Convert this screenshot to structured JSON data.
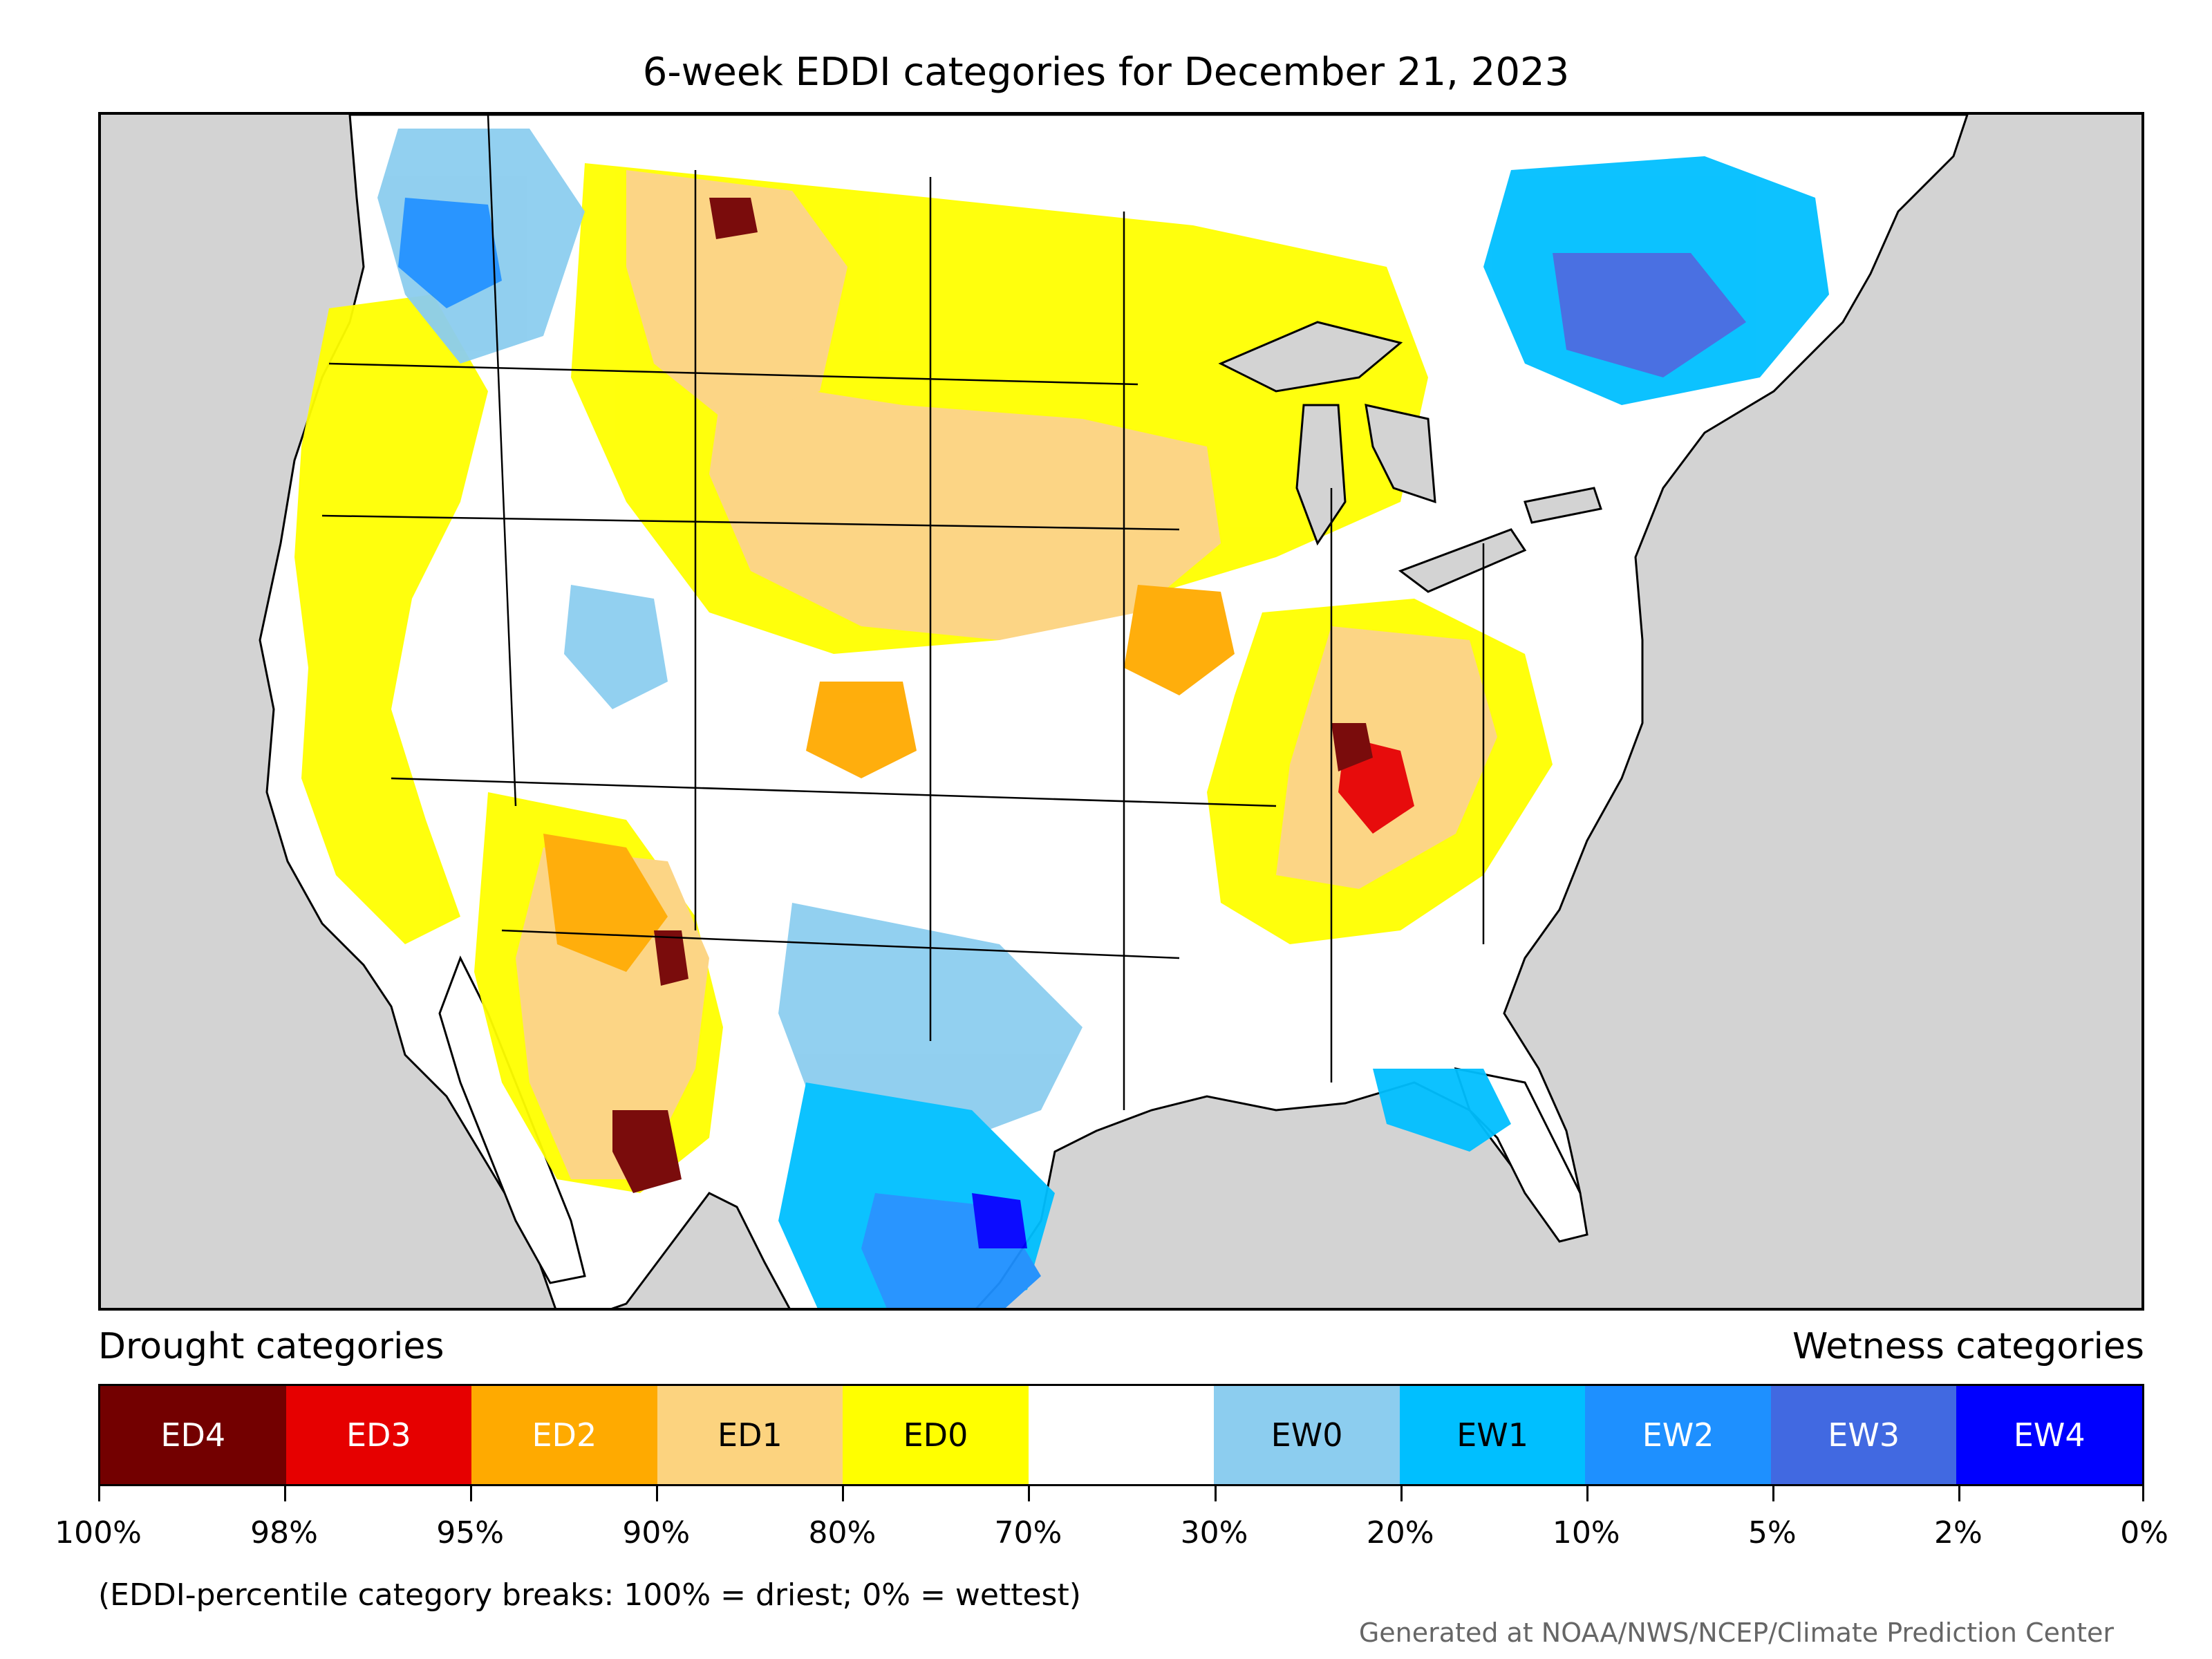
{
  "title": "6-week EDDI categories for December 21, 2023",
  "legend": {
    "drought_heading": "Drought categories",
    "wetness_heading": "Wetness categories",
    "categories": [
      {
        "label": "ED4",
        "color": "#730000",
        "text_color": "#ffffff"
      },
      {
        "label": "ED3",
        "color": "#e60000",
        "text_color": "#ffffff"
      },
      {
        "label": "ED2",
        "color": "#ffaa00",
        "text_color": "#ffffff"
      },
      {
        "label": "ED1",
        "color": "#fcd37f",
        "text_color": "#000000"
      },
      {
        "label": "ED0",
        "color": "#ffff00",
        "text_color": "#000000"
      },
      {
        "label": "",
        "color": "#ffffff",
        "text_color": "#000000"
      },
      {
        "label": "EW0",
        "color": "#8ccdef",
        "text_color": "#000000"
      },
      {
        "label": "EW1",
        "color": "#00bfff",
        "text_color": "#000000"
      },
      {
        "label": "EW2",
        "color": "#1e90ff",
        "text_color": "#ffffff"
      },
      {
        "label": "EW3",
        "color": "#4169e1",
        "text_color": "#ffffff"
      },
      {
        "label": "EW4",
        "color": "#0000ff",
        "text_color": "#ffffff"
      }
    ],
    "breaks": [
      "100%",
      "98%",
      "95%",
      "90%",
      "80%",
      "70%",
      "30%",
      "20%",
      "10%",
      "5%",
      "2%",
      "0%"
    ]
  },
  "footnote": "(EDDI-percentile category breaks: 100% = driest; 0% = wettest)",
  "credit": "Generated at NOAA/NWS/NCEP/Climate Prediction Center"
}
